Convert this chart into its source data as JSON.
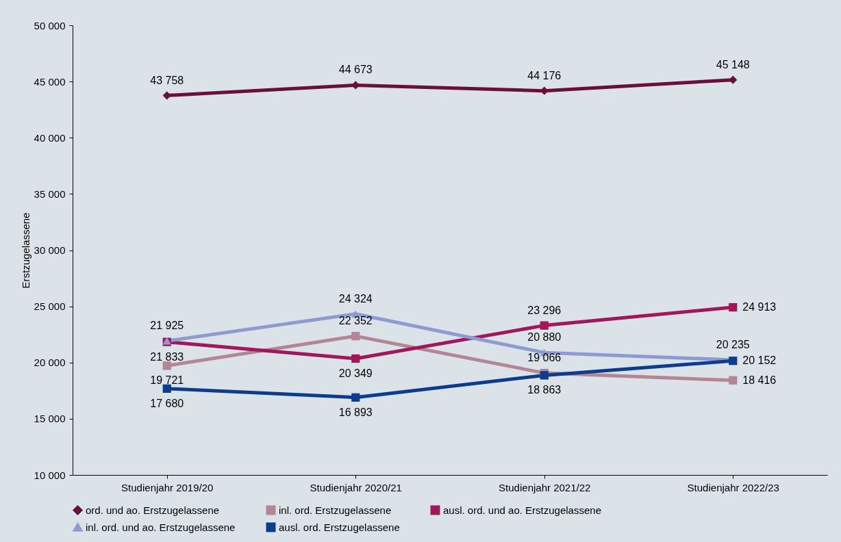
{
  "chart_data": {
    "type": "line",
    "ylabel": "Erstzugelassene",
    "categories": [
      "Studienjahr 2019/20",
      "Studienjahr 2020/21",
      "Studienjahr 2021/22",
      "Studienjahr 2022/23"
    ],
    "series": [
      {
        "name": "ord. und ao. Erstzugelassene",
        "color": "#6a0f3c",
        "marker": "diamond",
        "values": [
          43758,
          44673,
          44176,
          45148
        ],
        "value_labels": [
          "43 758",
          "44 673",
          "44 176",
          "45 148"
        ]
      },
      {
        "name": "inl. ord. Erstzugelassene",
        "color": "#b48594",
        "marker": "square",
        "values": [
          19721,
          22352,
          19066,
          18416
        ],
        "value_labels": [
          "19 721",
          "22 352",
          "19 066",
          "18 416"
        ]
      },
      {
        "name": "ausl. ord. und ao. Erstzugelassene",
        "color": "#a0175b",
        "marker": "square",
        "values": [
          21833,
          20349,
          23296,
          24913
        ],
        "value_labels": [
          "21 833",
          "20 349",
          "23 296",
          "24 913"
        ]
      },
      {
        "name": "inl. ord. und ao. Erstzugelassene",
        "color": "#8e9bd2",
        "marker": "triangle",
        "values": [
          21925,
          24324,
          20880,
          20235
        ],
        "value_labels": [
          "21 925",
          "24 324",
          "20 880",
          "20 235"
        ]
      },
      {
        "name": "ausl. ord. Erstzugelassene",
        "color": "#0c3d8c",
        "marker": "square",
        "values": [
          17680,
          16893,
          18863,
          20152
        ],
        "value_labels": [
          "17 680",
          "16 893",
          "18 863",
          "20 152"
        ]
      }
    ],
    "ylim": [
      10000,
      50000
    ],
    "yticks": [
      {
        "value": 10000,
        "label": "10 000"
      },
      {
        "value": 15000,
        "label": "15 000"
      },
      {
        "value": 20000,
        "label": "20 000"
      },
      {
        "value": 25000,
        "label": "25 000"
      },
      {
        "value": 30000,
        "label": "30 000"
      },
      {
        "value": 35000,
        "label": "35 000"
      },
      {
        "value": 40000,
        "label": "40 000"
      },
      {
        "value": 45000,
        "label": "45 000"
      },
      {
        "value": 50000,
        "label": "50 000"
      }
    ],
    "grid": false,
    "legend": "bottom",
    "line_style": "solid"
  }
}
